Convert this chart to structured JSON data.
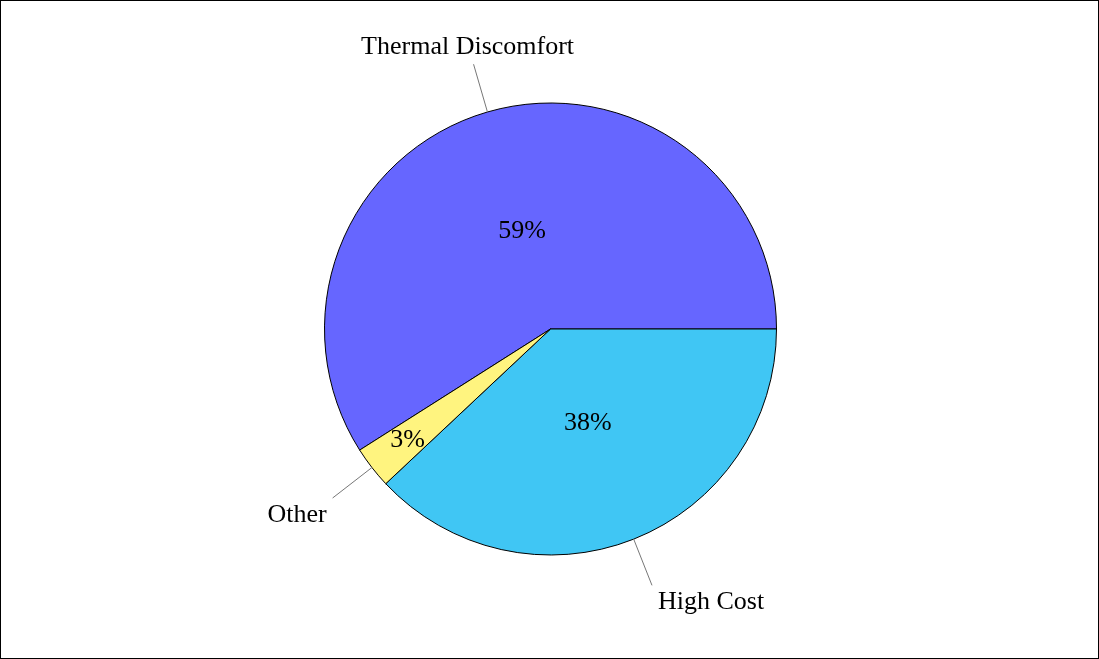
{
  "chart_data": {
    "type": "pie",
    "categories": [
      "Thermal Discomfort",
      "High Cost",
      "Other"
    ],
    "values": [
      59,
      38,
      3
    ],
    "colors": [
      "#6666ff",
      "#40c6f4",
      "#fff47f"
    ],
    "value_labels": [
      "59%",
      "38%",
      "3%"
    ],
    "legend": false
  }
}
